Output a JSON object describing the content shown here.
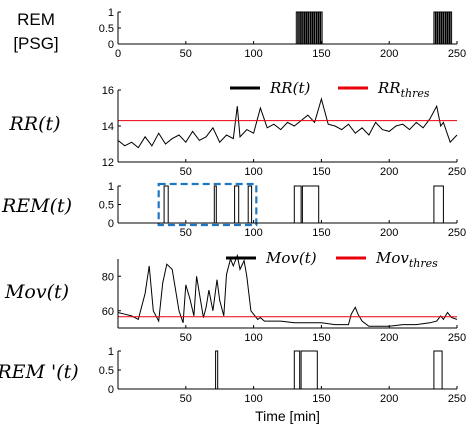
{
  "chart_data": [
    {
      "type": "line",
      "ylabel_lines": [
        "REM",
        "[PSG]"
      ],
      "xlim": [
        0,
        250
      ],
      "ylim": [
        0,
        1
      ],
      "xticks": [
        0,
        50,
        100,
        150,
        200,
        250
      ],
      "yticks": [
        0,
        0.5,
        1
      ],
      "xtick_labels": [
        "0",
        "50",
        "100",
        "150",
        "200",
        "250"
      ],
      "ytick_labels": [
        "0",
        "0.5",
        "1"
      ],
      "series": [
        {
          "color": "#000000",
          "style": "binary",
          "intervals": [
            [
              131.5,
              132.5
            ],
            [
              133,
              134
            ],
            [
              134.5,
              135.5
            ],
            [
              136,
              137
            ],
            [
              137.5,
              138.5
            ],
            [
              139,
              140
            ],
            [
              140.5,
              141.5
            ],
            [
              142,
              143
            ],
            [
              143.5,
              144.5
            ],
            [
              145,
              146
            ],
            [
              146.5,
              147.5
            ],
            [
              148,
              149
            ],
            [
              149.5,
              150.5
            ],
            [
              233,
              234
            ],
            [
              234.5,
              235.5
            ],
            [
              236,
              237
            ],
            [
              237.5,
              238.5
            ],
            [
              239,
              240
            ],
            [
              240.5,
              241.5
            ],
            [
              242,
              243
            ],
            [
              243.5,
              244.5
            ],
            [
              245,
              246
            ]
          ]
        }
      ]
    },
    {
      "type": "line",
      "ylabel": "RR(t)",
      "xlim": [
        0,
        250
      ],
      "ylim": [
        12,
        16
      ],
      "xticks": [
        50,
        100,
        150,
        200,
        250
      ],
      "yticks": [
        12,
        14,
        16
      ],
      "xtick_labels": [
        "50",
        "100",
        "150",
        "200",
        "250"
      ],
      "ytick_labels": [
        "12",
        "14",
        "16"
      ],
      "legend": {
        "position": "top-right",
        "entries": [
          {
            "text": "RR(t)",
            "sub": "",
            "color": "#000000"
          },
          {
            "text": "RR",
            "sub": "thres",
            "color": "#e8000b"
          }
        ]
      },
      "series": [
        {
          "color": "#000000",
          "x": [
            0,
            5,
            10,
            15,
            20,
            25,
            30,
            35,
            40,
            45,
            50,
            55,
            60,
            65,
            70,
            75,
            80,
            85,
            88,
            90,
            95,
            100,
            105,
            110,
            115,
            120,
            125,
            130,
            135,
            140,
            145,
            150,
            155,
            160,
            165,
            170,
            175,
            180,
            185,
            190,
            195,
            200,
            205,
            210,
            215,
            220,
            225,
            230,
            235,
            238,
            240,
            245,
            250
          ],
          "y": [
            13.2,
            12.9,
            13.1,
            12.8,
            13.4,
            12.9,
            13.6,
            13.0,
            13.3,
            13.5,
            13.1,
            13.7,
            13.2,
            13.4,
            13.9,
            13.1,
            13.5,
            13.3,
            15.1,
            13.4,
            13.8,
            13.6,
            15.0,
            13.9,
            14.1,
            13.8,
            14.2,
            14.0,
            14.3,
            14.6,
            14.2,
            15.5,
            14.1,
            14.0,
            13.8,
            14.1,
            13.6,
            13.9,
            13.5,
            14.2,
            13.8,
            13.7,
            14.0,
            14.1,
            13.8,
            14.2,
            13.9,
            14.4,
            15.1,
            14.0,
            14.2,
            13.1,
            13.5
          ]
        },
        {
          "color": "#e8000b",
          "x": [
            0,
            250
          ],
          "y": [
            14.3,
            14.3
          ]
        }
      ]
    },
    {
      "type": "line",
      "ylabel": "REM(t)",
      "xlim": [
        0,
        250
      ],
      "ylim": [
        0,
        1
      ],
      "xticks": [
        50,
        100,
        150,
        200,
        250
      ],
      "yticks": [
        0,
        0.5,
        1
      ],
      "xtick_labels": [
        "50",
        "100",
        "150",
        "200",
        "250"
      ],
      "ytick_labels": [
        "0",
        "0.5",
        "1"
      ],
      "annotation_box": {
        "x0": 30,
        "x1": 102,
        "color": "#1f77c4"
      },
      "series": [
        {
          "color": "#000000",
          "style": "binary",
          "intervals": [
            [
              34,
              37
            ],
            [
              71,
              72.5
            ],
            [
              86,
              89
            ],
            [
              96,
              98.5
            ],
            [
              130,
              135
            ],
            [
              136,
              148
            ],
            [
              233,
              240
            ]
          ]
        }
      ]
    },
    {
      "type": "line",
      "ylabel": "Mov(t)",
      "xlim": [
        0,
        250
      ],
      "ylim": [
        50,
        90
      ],
      "xticks": [
        50,
        100,
        150,
        200,
        250
      ],
      "yticks": [
        60,
        80
      ],
      "xtick_labels": [
        "50",
        "100",
        "150",
        "200",
        "250"
      ],
      "ytick_labels": [
        "60",
        "80"
      ],
      "legend": {
        "position": "top-center",
        "entries": [
          {
            "text": "Mov(t)",
            "sub": "",
            "color": "#000000"
          },
          {
            "text": "Mov",
            "sub": "thres",
            "color": "#e8000b"
          }
        ]
      },
      "series": [
        {
          "color": "#000000",
          "x": [
            0,
            5,
            10,
            15,
            20,
            23,
            26,
            30,
            33,
            36,
            40,
            45,
            48,
            50,
            53,
            56,
            58,
            60,
            63,
            65,
            67,
            70,
            73,
            75,
            78,
            80,
            83,
            85,
            88,
            90,
            93,
            95,
            98,
            100,
            103,
            105,
            108,
            110,
            120,
            130,
            140,
            150,
            160,
            170,
            172,
            175,
            177,
            180,
            185,
            190,
            200,
            210,
            220,
            230,
            235,
            238,
            240,
            243,
            246,
            250
          ],
          "y": [
            59,
            58,
            57,
            55,
            70,
            86,
            60,
            54,
            76,
            87,
            84,
            60,
            53,
            75,
            67,
            57,
            80,
            70,
            56,
            62,
            72,
            60,
            78,
            66,
            57,
            81,
            90,
            86,
            92,
            84,
            89,
            80,
            60,
            58,
            55,
            56,
            54,
            54,
            54,
            53,
            53,
            53,
            52,
            52,
            58,
            62,
            58,
            54,
            51,
            51,
            51,
            52,
            52,
            53,
            54,
            57,
            55,
            59,
            56,
            55
          ]
        },
        {
          "color": "#e8000b",
          "x": [
            0,
            250
          ],
          "y": [
            56.5,
            56.5
          ]
        }
      ]
    },
    {
      "type": "line",
      "ylabel": "REM '(t)",
      "xlabel": "Time [min]",
      "xlim": [
        0,
        250
      ],
      "ylim": [
        0,
        1
      ],
      "xticks": [
        50,
        100,
        150,
        200,
        250
      ],
      "yticks": [
        0,
        0.5,
        1
      ],
      "xtick_labels": [
        "50",
        "100",
        "150",
        "200",
        "250"
      ],
      "ytick_labels": [
        "0",
        "0.5",
        "1"
      ],
      "series": [
        {
          "color": "#000000",
          "style": "binary",
          "intervals": [
            [
              72,
              73.5
            ],
            [
              130,
              134
            ],
            [
              135,
              147
            ],
            [
              233,
              239
            ]
          ]
        }
      ]
    }
  ]
}
